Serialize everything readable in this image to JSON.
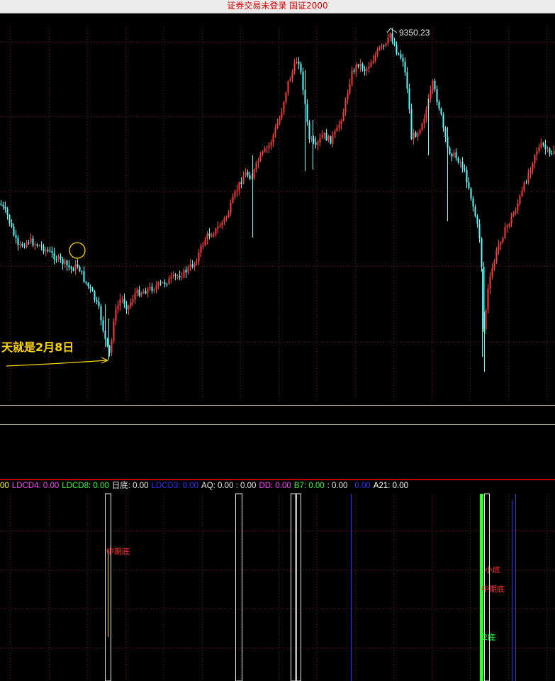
{
  "window": {
    "title": "证券交易未登录  国证2000"
  },
  "main_chart": {
    "high_label": "9350.23",
    "annotation_text": "天就是2月8日",
    "colors": {
      "up": "#ff3b3b",
      "down": "#54ffff",
      "grid": "#7a1010",
      "annotation": "#ffd800"
    }
  },
  "indicator": {
    "header": [
      {
        "label": "00",
        "color": "#ffff00"
      },
      {
        "label": "LDCD4: 0.00",
        "color": "#ff40ff"
      },
      {
        "label": "LDCD8: 0.00",
        "color": "#30ff30"
      },
      {
        "label": "日底: 0.00",
        "color": "#e8e8e8"
      },
      {
        "label": "LDCD3: 0.00",
        "color": "#3030ff"
      },
      {
        "label": "AQ: 0.00 : 0.00",
        "color": "#e8e8e8"
      },
      {
        "label": "DD: 0.00",
        "color": "#ff40ff"
      },
      {
        "label": "B7: 0.00",
        "color": "#30ff30"
      },
      {
        "label": ": 0.00",
        "color": "#e8e8e8"
      },
      {
        "label": "0.00",
        "color": "#3030ff"
      },
      {
        "label": "A21: 0.00",
        "color": "#ffffff"
      }
    ],
    "signal_labels": [
      {
        "text": "中期底",
        "color": "#ff3030"
      },
      {
        "text": "小底",
        "color": "#ff3030"
      },
      {
        "text": "中期底",
        "color": "#ff3030"
      },
      {
        "text": "2底",
        "color": "#30ff30"
      }
    ]
  }
}
